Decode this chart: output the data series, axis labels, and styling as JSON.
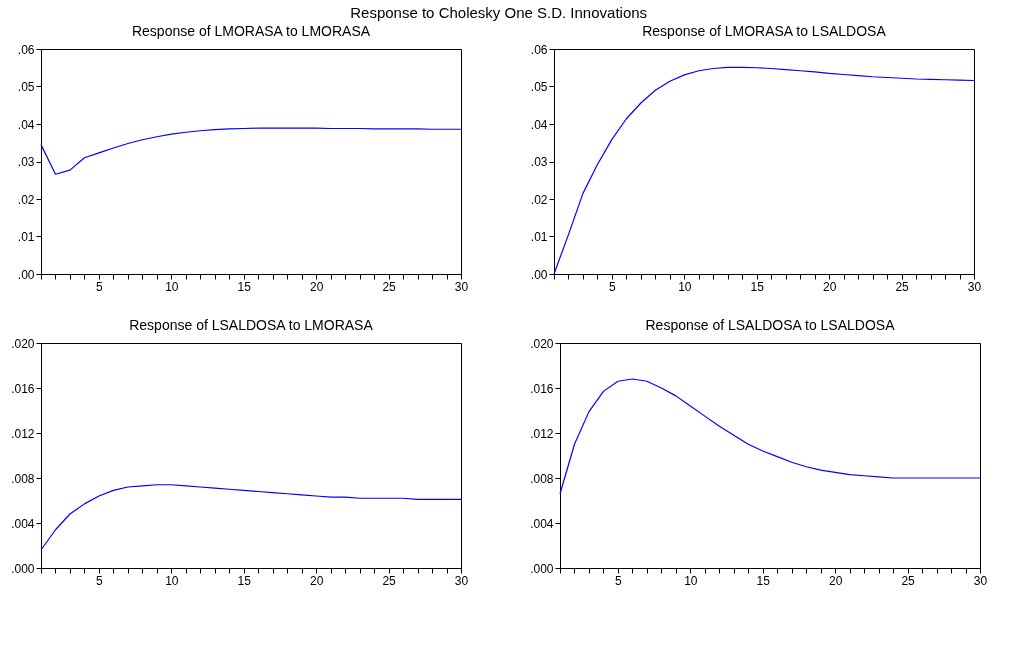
{
  "chart_data": [
    {
      "type": "line",
      "title": "Response of LMORASA to LMORASA",
      "annotations": [
        "Response to Cholesky One S.D. Innovations"
      ],
      "x": [
        1,
        2,
        3,
        4,
        5,
        6,
        7,
        8,
        9,
        10,
        11,
        12,
        13,
        14,
        15,
        16,
        17,
        18,
        19,
        20,
        21,
        22,
        23,
        24,
        25,
        26,
        27,
        28,
        29,
        30
      ],
      "series": [
        {
          "color": "#0000ff",
          "values": [
            0.0345,
            0.0266,
            0.0277,
            0.031,
            0.0323,
            0.0336,
            0.0348,
            0.0358,
            0.0366,
            0.0373,
            0.0378,
            0.0382,
            0.0385,
            0.0387,
            0.0388,
            0.0389,
            0.0389,
            0.0389,
            0.0389,
            0.0389,
            0.0388,
            0.0388,
            0.0388,
            0.0387,
            0.0387,
            0.0387,
            0.0387,
            0.0386,
            0.0386,
            0.0386
          ]
        }
      ],
      "xlim": [
        1,
        30
      ],
      "xticks": [
        {
          "value": 1,
          "label": null
        },
        {
          "value": 2,
          "label": null
        },
        {
          "value": 3,
          "label": null
        },
        {
          "value": 4,
          "label": null
        },
        5,
        {
          "value": 6,
          "label": null
        },
        {
          "value": 7,
          "label": null
        },
        {
          "value": 8,
          "label": null
        },
        {
          "value": 9,
          "label": null
        },
        10,
        {
          "value": 11,
          "label": null
        },
        {
          "value": 12,
          "label": null
        },
        {
          "value": 13,
          "label": null
        },
        {
          "value": 14,
          "label": null
        },
        15,
        {
          "value": 16,
          "label": null
        },
        {
          "value": 17,
          "label": null
        },
        {
          "value": 18,
          "label": null
        },
        {
          "value": 19,
          "label": null
        },
        20,
        {
          "value": 21,
          "label": null
        },
        {
          "value": 22,
          "label": null
        },
        {
          "value": 23,
          "label": null
        },
        {
          "value": 24,
          "label": null
        },
        25,
        {
          "value": 26,
          "label": null
        },
        {
          "value": 27,
          "label": null
        },
        {
          "value": 28,
          "label": null
        },
        {
          "value": 29,
          "label": null
        },
        30
      ],
      "ylim": [
        0,
        0.06
      ],
      "yticks": [
        {
          "value": 0,
          "label": ".00"
        },
        {
          "value": 0.01,
          "label": ".01"
        },
        {
          "value": 0.02,
          "label": ".02"
        },
        {
          "value": 0.03,
          "label": ".03"
        },
        {
          "value": 0.04,
          "label": ".04"
        },
        {
          "value": 0.05,
          "label": ".05"
        },
        {
          "value": 0.06,
          "label": ".06"
        }
      ],
      "grid": false
    },
    {
      "type": "line",
      "title": "Response of LMORASA to LSALDOSA",
      "x": [
        1,
        2,
        3,
        4,
        5,
        6,
        7,
        8,
        9,
        10,
        11,
        12,
        13,
        14,
        15,
        16,
        17,
        18,
        19,
        20,
        21,
        22,
        23,
        24,
        25,
        26,
        27,
        28,
        29,
        30
      ],
      "series": [
        {
          "color": "#0000ff",
          "values": [
            0,
            0.0105,
            0.0215,
            0.0292,
            0.0359,
            0.0414,
            0.0456,
            0.049,
            0.0514,
            0.0531,
            0.0542,
            0.0548,
            0.0551,
            0.0551,
            0.055,
            0.0548,
            0.0545,
            0.0542,
            0.0539,
            0.0535,
            0.0532,
            0.0529,
            0.0526,
            0.0524,
            0.0522,
            0.052,
            0.0519,
            0.0518,
            0.0517,
            0.0516
          ]
        }
      ],
      "xlim": [
        1,
        30
      ],
      "xticks": [
        {
          "value": 1,
          "label": null
        },
        {
          "value": 2,
          "label": null
        },
        {
          "value": 3,
          "label": null
        },
        {
          "value": 4,
          "label": null
        },
        5,
        {
          "value": 6,
          "label": null
        },
        {
          "value": 7,
          "label": null
        },
        {
          "value": 8,
          "label": null
        },
        {
          "value": 9,
          "label": null
        },
        10,
        {
          "value": 11,
          "label": null
        },
        {
          "value": 12,
          "label": null
        },
        {
          "value": 13,
          "label": null
        },
        {
          "value": 14,
          "label": null
        },
        15,
        {
          "value": 16,
          "label": null
        },
        {
          "value": 17,
          "label": null
        },
        {
          "value": 18,
          "label": null
        },
        {
          "value": 19,
          "label": null
        },
        20,
        {
          "value": 21,
          "label": null
        },
        {
          "value": 22,
          "label": null
        },
        {
          "value": 23,
          "label": null
        },
        {
          "value": 24,
          "label": null
        },
        25,
        {
          "value": 26,
          "label": null
        },
        {
          "value": 27,
          "label": null
        },
        {
          "value": 28,
          "label": null
        },
        {
          "value": 29,
          "label": null
        },
        30
      ],
      "ylim": [
        0,
        0.06
      ],
      "yticks": [
        {
          "value": 0,
          "label": ".00"
        },
        {
          "value": 0.01,
          "label": ".01"
        },
        {
          "value": 0.02,
          "label": ".02"
        },
        {
          "value": 0.03,
          "label": ".03"
        },
        {
          "value": 0.04,
          "label": ".04"
        },
        {
          "value": 0.05,
          "label": ".05"
        },
        {
          "value": 0.06,
          "label": ".06"
        }
      ],
      "grid": false
    },
    {
      "type": "line",
      "title": "Response of LSALDOSA to LMORASA",
      "x": [
        1,
        2,
        3,
        4,
        5,
        6,
        7,
        8,
        9,
        10,
        11,
        12,
        13,
        14,
        15,
        16,
        17,
        18,
        19,
        20,
        21,
        22,
        23,
        24,
        25,
        26,
        27,
        28,
        29,
        30
      ],
      "series": [
        {
          "color": "#0000ff",
          "values": [
            0.0016,
            0.0034,
            0.0048,
            0.0057,
            0.0064,
            0.0069,
            0.0072,
            0.0073,
            0.0074,
            0.0074,
            0.0073,
            0.0072,
            0.0071,
            0.007,
            0.0069,
            0.0068,
            0.0067,
            0.0066,
            0.0065,
            0.0064,
            0.0063,
            0.0063,
            0.0062,
            0.0062,
            0.0062,
            0.0062,
            0.0061,
            0.0061,
            0.0061,
            0.0061
          ]
        }
      ],
      "xlim": [
        1,
        30
      ],
      "xticks": [
        {
          "value": 1,
          "label": null
        },
        {
          "value": 2,
          "label": null
        },
        {
          "value": 3,
          "label": null
        },
        {
          "value": 4,
          "label": null
        },
        5,
        {
          "value": 6,
          "label": null
        },
        {
          "value": 7,
          "label": null
        },
        {
          "value": 8,
          "label": null
        },
        {
          "value": 9,
          "label": null
        },
        10,
        {
          "value": 11,
          "label": null
        },
        {
          "value": 12,
          "label": null
        },
        {
          "value": 13,
          "label": null
        },
        {
          "value": 14,
          "label": null
        },
        15,
        {
          "value": 16,
          "label": null
        },
        {
          "value": 17,
          "label": null
        },
        {
          "value": 18,
          "label": null
        },
        {
          "value": 19,
          "label": null
        },
        20,
        {
          "value": 21,
          "label": null
        },
        {
          "value": 22,
          "label": null
        },
        {
          "value": 23,
          "label": null
        },
        {
          "value": 24,
          "label": null
        },
        25,
        {
          "value": 26,
          "label": null
        },
        {
          "value": 27,
          "label": null
        },
        {
          "value": 28,
          "label": null
        },
        {
          "value": 29,
          "label": null
        },
        30
      ],
      "ylim": [
        0,
        0.02
      ],
      "yticks": [
        {
          "value": 0,
          "label": ".000"
        },
        {
          "value": 0.004,
          "label": ".004"
        },
        {
          "value": 0.008,
          "label": ".008"
        },
        {
          "value": 0.012,
          "label": ".012"
        },
        {
          "value": 0.016,
          "label": ".016"
        },
        {
          "value": 0.02,
          "label": ".020"
        }
      ],
      "grid": false
    },
    {
      "type": "line",
      "title": "Response of LSALDOSA to LSALDOSA",
      "x": [
        1,
        2,
        3,
        4,
        5,
        6,
        7,
        8,
        9,
        10,
        11,
        12,
        13,
        14,
        15,
        16,
        17,
        18,
        19,
        20,
        21,
        22,
        23,
        24,
        25,
        26,
        27,
        28,
        29,
        30
      ],
      "series": [
        {
          "color": "#0000ff",
          "values": [
            0.0066,
            0.011,
            0.0139,
            0.0157,
            0.0166,
            0.0168,
            0.0166,
            0.016,
            0.0153,
            0.0144,
            0.0135,
            0.0126,
            0.0118,
            0.011,
            0.0104,
            0.0099,
            0.0094,
            0.009,
            0.0087,
            0.0085,
            0.0083,
            0.0082,
            0.0081,
            0.008,
            0.008,
            0.008,
            0.008,
            0.008,
            0.008,
            0.008
          ]
        }
      ],
      "xlim": [
        1,
        30
      ],
      "xticks": [
        {
          "value": 1,
          "label": null
        },
        {
          "value": 2,
          "label": null
        },
        {
          "value": 3,
          "label": null
        },
        {
          "value": 4,
          "label": null
        },
        5,
        {
          "value": 6,
          "label": null
        },
        {
          "value": 7,
          "label": null
        },
        {
          "value": 8,
          "label": null
        },
        {
          "value": 9,
          "label": null
        },
        10,
        {
          "value": 11,
          "label": null
        },
        {
          "value": 12,
          "label": null
        },
        {
          "value": 13,
          "label": null
        },
        {
          "value": 14,
          "label": null
        },
        15,
        {
          "value": 16,
          "label": null
        },
        {
          "value": 17,
          "label": null
        },
        {
          "value": 18,
          "label": null
        },
        {
          "value": 19,
          "label": null
        },
        20,
        {
          "value": 21,
          "label": null
        },
        {
          "value": 22,
          "label": null
        },
        {
          "value": 23,
          "label": null
        },
        {
          "value": 24,
          "label": null
        },
        25,
        {
          "value": 26,
          "label": null
        },
        {
          "value": 27,
          "label": null
        },
        {
          "value": 28,
          "label": null
        },
        {
          "value": 29,
          "label": null
        },
        30
      ],
      "ylim": [
        0,
        0.02
      ],
      "yticks": [
        {
          "value": 0,
          "label": ".000"
        },
        {
          "value": 0.004,
          "label": ".004"
        },
        {
          "value": 0.008,
          "label": ".008"
        },
        {
          "value": 0.012,
          "label": ".012"
        },
        {
          "value": 0.016,
          "label": ".016"
        },
        {
          "value": 0.02,
          "label": ".020"
        }
      ],
      "grid": false
    }
  ]
}
